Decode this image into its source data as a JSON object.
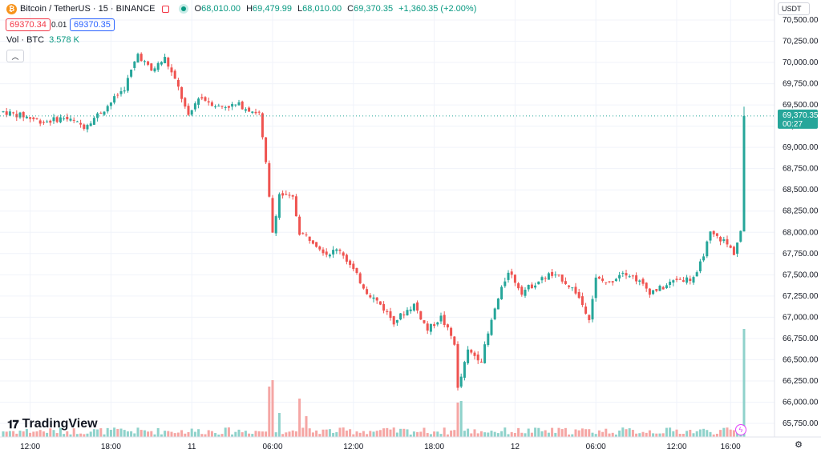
{
  "header": {
    "symbol": "Bitcoin / TetherUS · 15 · BINANCE",
    "coin_icon": "bitcoin-icon",
    "open_label": "O",
    "open": "68,010.00",
    "high_label": "H",
    "high": "69,479.99",
    "low_label": "L",
    "low": "68,010.00",
    "close_label": "C",
    "close": "69,370.35",
    "change": "+1,360.35 (+2.00%)"
  },
  "trade": {
    "bid": "69370.34",
    "spread": "0.01",
    "ask": "69370.35"
  },
  "volume": {
    "label": "Vol · BTC",
    "value": "3.578 K"
  },
  "currency": "USDT",
  "logo": "TradingView",
  "colors": {
    "up": "#26a69a",
    "down": "#ef5350",
    "vol_up": "#8fd2cb",
    "vol_down": "#f5a6a4",
    "grid": "#f0f3fa",
    "axis_text": "#131722"
  },
  "chart_data": {
    "type": "candlestick",
    "interval": "15",
    "ylim": [
      65700,
      70600
    ],
    "y_ticks": [
      "70,500.00",
      "70,250.00",
      "70,000.00",
      "69,750.00",
      "69,500.00",
      "69,250.00",
      "69,000.00",
      "68,750.00",
      "68,500.00",
      "68,250.00",
      "68,000.00",
      "67,750.00",
      "67,500.00",
      "67,250.00",
      "67,000.00",
      "66,750.00",
      "66,500.00",
      "66,250.00",
      "66,000.00",
      "65,750.00"
    ],
    "y_tick_values": [
      70500,
      70250,
      70000,
      69750,
      69500,
      69250,
      69000,
      68750,
      68500,
      68250,
      68000,
      67750,
      67500,
      67250,
      67000,
      66750,
      66500,
      66250,
      66000,
      65750
    ],
    "x_ticks": [
      "12:00",
      "18:00",
      "11",
      "06:00",
      "12:00",
      "18:00",
      "12",
      "06:00",
      "12:00",
      "16:00"
    ],
    "x_tick_bars": [
      8,
      32,
      56,
      80,
      104,
      128,
      152,
      176,
      200,
      216
    ],
    "last_price": {
      "value": "69,370.35",
      "countdown": "00:27",
      "y": 69370.35
    },
    "keypoints": [
      {
        "bar": 0,
        "price": 69420
      },
      {
        "bar": 6,
        "price": 69370
      },
      {
        "bar": 12,
        "price": 69300
      },
      {
        "bar": 18,
        "price": 69350
      },
      {
        "bar": 24,
        "price": 69250
      },
      {
        "bar": 30,
        "price": 69450
      },
      {
        "bar": 36,
        "price": 69700
      },
      {
        "bar": 40,
        "price": 70100
      },
      {
        "bar": 44,
        "price": 69900
      },
      {
        "bar": 48,
        "price": 70050
      },
      {
        "bar": 52,
        "price": 69700
      },
      {
        "bar": 55,
        "price": 69350
      },
      {
        "bar": 58,
        "price": 69600
      },
      {
        "bar": 64,
        "price": 69480
      },
      {
        "bar": 70,
        "price": 69500
      },
      {
        "bar": 76,
        "price": 69400
      },
      {
        "bar": 78,
        "price": 68800
      },
      {
        "bar": 80,
        "price": 68000
      },
      {
        "bar": 82,
        "price": 68450
      },
      {
        "bar": 86,
        "price": 68400
      },
      {
        "bar": 88,
        "price": 68000
      },
      {
        "bar": 92,
        "price": 67900
      },
      {
        "bar": 96,
        "price": 67750
      },
      {
        "bar": 100,
        "price": 67800
      },
      {
        "bar": 104,
        "price": 67550
      },
      {
        "bar": 108,
        "price": 67300
      },
      {
        "bar": 112,
        "price": 67150
      },
      {
        "bar": 116,
        "price": 66950
      },
      {
        "bar": 122,
        "price": 67150
      },
      {
        "bar": 126,
        "price": 66850
      },
      {
        "bar": 130,
        "price": 67000
      },
      {
        "bar": 134,
        "price": 66700
      },
      {
        "bar": 135,
        "price": 66150
      },
      {
        "bar": 138,
        "price": 66600
      },
      {
        "bar": 142,
        "price": 66500
      },
      {
        "bar": 146,
        "price": 67100
      },
      {
        "bar": 150,
        "price": 67550
      },
      {
        "bar": 154,
        "price": 67300
      },
      {
        "bar": 158,
        "price": 67400
      },
      {
        "bar": 162,
        "price": 67500
      },
      {
        "bar": 166,
        "price": 67450
      },
      {
        "bar": 170,
        "price": 67300
      },
      {
        "bar": 174,
        "price": 67000
      },
      {
        "bar": 176,
        "price": 67450
      },
      {
        "bar": 180,
        "price": 67400
      },
      {
        "bar": 184,
        "price": 67550
      },
      {
        "bar": 188,
        "price": 67450
      },
      {
        "bar": 192,
        "price": 67300
      },
      {
        "bar": 196,
        "price": 67350
      },
      {
        "bar": 200,
        "price": 67450
      },
      {
        "bar": 204,
        "price": 67450
      },
      {
        "bar": 206,
        "price": 67500
      },
      {
        "bar": 208,
        "price": 67750
      },
      {
        "bar": 210,
        "price": 67980
      },
      {
        "bar": 214,
        "price": 67900
      },
      {
        "bar": 217,
        "price": 67760
      },
      {
        "bar": 219,
        "price": 68010
      },
      {
        "bar": 220,
        "price": 69370
      }
    ]
  }
}
